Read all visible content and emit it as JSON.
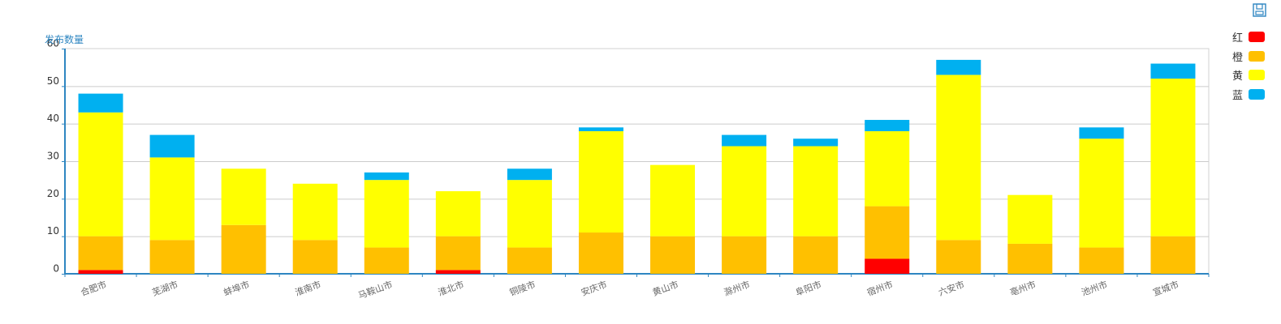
{
  "chart_data": {
    "type": "bar",
    "stacked": true,
    "ylabel": "发布数量",
    "ylim": [
      0,
      60
    ],
    "yticks": [
      0,
      10,
      20,
      30,
      40,
      50,
      60
    ],
    "grid": true,
    "legend_position": "right",
    "categories": [
      "合肥市",
      "芜湖市",
      "蚌埠市",
      "淮南市",
      "马鞍山市",
      "淮北市",
      "铜陵市",
      "安庆市",
      "黄山市",
      "滁州市",
      "阜阳市",
      "宿州市",
      "六安市",
      "亳州市",
      "池州市",
      "宣城市"
    ],
    "series": [
      {
        "name": "红",
        "color": "#ff0000",
        "values": [
          1,
          0,
          0,
          0,
          0,
          1,
          0,
          0,
          0,
          0,
          0,
          4,
          0,
          0,
          0,
          0
        ]
      },
      {
        "name": "橙",
        "color": "#ffc000",
        "values": [
          9,
          9,
          13,
          9,
          7,
          9,
          7,
          11,
          10,
          10,
          10,
          14,
          9,
          8,
          7,
          10
        ]
      },
      {
        "name": "黄",
        "color": "#ffff00",
        "values": [
          33,
          22,
          15,
          15,
          18,
          12,
          18,
          27,
          19,
          24,
          24,
          20,
          44,
          13,
          29,
          42
        ]
      },
      {
        "name": "蓝",
        "color": "#00b0f0",
        "values": [
          5,
          6,
          0,
          0,
          2,
          0,
          3,
          1,
          0,
          3,
          2,
          3,
          4,
          0,
          3,
          4
        ]
      }
    ]
  }
}
